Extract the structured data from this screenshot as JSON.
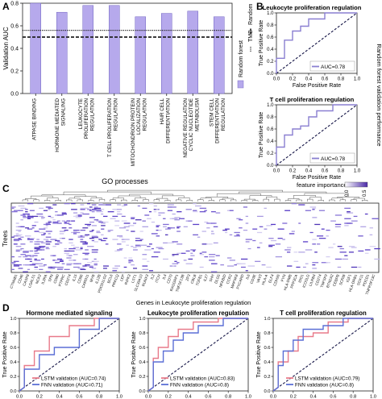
{
  "panel_labels": [
    "A",
    "B",
    "C",
    "D"
  ],
  "chart_data": [
    {
      "id": "A",
      "type": "bar",
      "ylabel": "Validation AUC",
      "ylim": [
        0,
        0.8
      ],
      "yticks": [
        "0.0",
        "0.2",
        "0.4",
        "0.6",
        "0.8"
      ],
      "categories": [
        "ATPASE BINDING",
        "HORMONE MEDIATED SIGNALING",
        "LEUKOCYTE PROLIFERATION REGULATION",
        "T CELL PROLIFERATION REGULATION",
        "MITOCHONDRION PROTEIN LOCALIZATION REGULATION",
        "HAIR CELL DIFFERENTIATION",
        "NEGATIVE REGULATION CYCLIC NUCLEOTIDE METABOLISM",
        "STEM CELL DIFFERENTIATION REGULATION"
      ],
      "values": [
        0.8,
        0.72,
        0.78,
        0.78,
        0.68,
        0.71,
        0.73,
        0.68
      ],
      "bar_color": "#b6a9ec",
      "reference_lines": [
        {
          "name": "Random",
          "value": 0.5,
          "style": "dashed"
        },
        {
          "name": "TMB",
          "value": 0.56,
          "style": "dotted"
        }
      ],
      "legend": [
        "Random forest",
        "TMB",
        "Random"
      ],
      "xlabel": "GO processes"
    },
    {
      "id": "B1",
      "type": "line",
      "title": "Leukocyte proliferation regulation",
      "xlabel": "False Positive Rate",
      "ylabel": "True Positive Rate",
      "ticks": [
        "0.0",
        "0.2",
        "0.4",
        "0.6",
        "0.8",
        "1.0"
      ],
      "xlim": [
        0,
        1
      ],
      "ylim": [
        0,
        1
      ],
      "series": [
        {
          "name": "AUC=0.78",
          "x": [
            0,
            0,
            0.1,
            0.1,
            0.2,
            0.2,
            0.3,
            0.3,
            0.4,
            0.4,
            0.6,
            0.6,
            1.0
          ],
          "y": [
            0,
            0.25,
            0.25,
            0.55,
            0.55,
            0.7,
            0.7,
            0.78,
            0.78,
            0.9,
            0.9,
            1.0,
            1.0
          ],
          "color": "#8a7fd1"
        }
      ],
      "side_label": "Random forest validation performance"
    },
    {
      "id": "B2",
      "type": "line",
      "title": "T cell proliferation regulation",
      "xlabel": "False Positive Rate",
      "ylabel": "True Positive Rate",
      "ticks": [
        "0.0",
        "0.2",
        "0.4",
        "0.6",
        "0.8",
        "1.0"
      ],
      "xlim": [
        0,
        1
      ],
      "ylim": [
        0,
        1
      ],
      "series": [
        {
          "name": "AUC=0.78",
          "x": [
            0,
            0,
            0.1,
            0.1,
            0.2,
            0.2,
            0.3,
            0.3,
            0.4,
            0.4,
            0.5,
            0.5,
            0.7,
            0.7,
            1.0
          ],
          "y": [
            0,
            0.3,
            0.3,
            0.5,
            0.5,
            0.6,
            0.6,
            0.65,
            0.65,
            0.8,
            0.8,
            0.9,
            0.9,
            1.0,
            1.0
          ],
          "color": "#8a7fd1"
        }
      ]
    },
    {
      "id": "C",
      "type": "heatmap",
      "ylabel": "Trees",
      "xlabel": "Genes in Leukocyte proliferation regulation",
      "colorbar_title": "feature importances",
      "colorbar_ticks": [
        "0.0",
        "0.5"
      ],
      "gene_labels": [
        "CTNNB1",
        "CD46",
        "CASP8",
        "LGALS1",
        "NCK2",
        "IL2RA",
        "SPN",
        "CD80",
        "PTPRC",
        "CD274",
        "IL15",
        "CD86",
        "CARD11",
        "MYB",
        "IL12B",
        "PDCD1LG2",
        "BCL6",
        "PRKCQ",
        "LEP",
        "RIPK3",
        "LST1",
        "SLC39A10",
        "RUNX3",
        "IL2",
        "ITCH",
        "IL4",
        "CD70",
        "RASGRP1",
        "TNFSF13B",
        "ZP3",
        "CBLB",
        "TGFB1",
        "IL27",
        "SHH",
        "DLG5",
        "NFKBID",
        "CCR2",
        "MAP3K8",
        "PYCARD",
        "IL6",
        "CD3E",
        "VAV3",
        "HLA-A",
        "ELF4",
        "CDH26",
        "FYN",
        "HLA-DMB",
        "PPP3CA",
        "IDO1",
        "ICOSLG",
        "LILRB4",
        "CD274",
        "TNFSF9",
        "BTN2A2",
        "CEBPB",
        "SCRIB",
        "IGF1",
        "HLA-DRB1",
        "SOX11",
        "PDCD1",
        "TNFRSF13C"
      ]
    },
    {
      "id": "D1",
      "type": "line",
      "title": "Hormone mediated signaling",
      "xlabel": "False Positive Rate",
      "ylabel": "True Positive Rate",
      "ticks": [
        "0.0",
        "0.2",
        "0.4",
        "0.6",
        "0.8",
        "1.0"
      ],
      "xlim": [
        0,
        1
      ],
      "ylim": [
        0,
        1
      ],
      "series": [
        {
          "name": "LSTM validation (AUC=0.74)",
          "x": [
            0,
            0.05,
            0.05,
            0.15,
            0.15,
            0.3,
            0.3,
            0.5,
            0.5,
            0.75,
            0.75,
            1.0
          ],
          "y": [
            0,
            0.05,
            0.35,
            0.35,
            0.55,
            0.55,
            0.75,
            0.75,
            0.9,
            0.9,
            1.0,
            1.0
          ],
          "color": "#e87a8a"
        },
        {
          "name": "FNN validation (AUC=0.71)",
          "x": [
            0,
            0.05,
            0.05,
            0.2,
            0.2,
            0.35,
            0.35,
            0.6,
            0.6,
            0.8,
            0.8,
            1.0
          ],
          "y": [
            0,
            0.05,
            0.3,
            0.3,
            0.5,
            0.5,
            0.6,
            0.6,
            0.85,
            0.85,
            1.0,
            1.0
          ],
          "color": "#5b6fd6"
        }
      ]
    },
    {
      "id": "D2",
      "type": "line",
      "title": "Leukocyte proliferation regulation",
      "xlabel": "False Positive Rate",
      "ylabel": "True Positive Rate",
      "ticks": [
        "0.0",
        "0.2",
        "0.4",
        "0.6",
        "0.8",
        "1.0"
      ],
      "xlim": [
        0,
        1
      ],
      "ylim": [
        0,
        1
      ],
      "series": [
        {
          "name": "LSTM validation (AUC=0.83)",
          "x": [
            0,
            0.05,
            0.05,
            0.1,
            0.1,
            0.2,
            0.2,
            0.3,
            0.3,
            0.45,
            0.45,
            0.7,
            0.7,
            1.0
          ],
          "y": [
            0,
            0.05,
            0.45,
            0.45,
            0.6,
            0.6,
            0.75,
            0.75,
            0.85,
            0.85,
            0.95,
            0.95,
            1.0,
            1.0
          ],
          "color": "#e87a8a"
        },
        {
          "name": "FNN validation (AUC=0.8)",
          "x": [
            0,
            0.05,
            0.05,
            0.15,
            0.15,
            0.25,
            0.25,
            0.35,
            0.35,
            0.5,
            0.5,
            0.75,
            0.75,
            1.0
          ],
          "y": [
            0,
            0.05,
            0.4,
            0.4,
            0.55,
            0.55,
            0.7,
            0.7,
            0.8,
            0.8,
            0.9,
            0.9,
            1.0,
            1.0
          ],
          "color": "#5b6fd6"
        }
      ]
    },
    {
      "id": "D3",
      "type": "line",
      "title": "T cell proliferation regulation",
      "xlabel": "False Positive Rate",
      "ylabel": "True Positive Rate",
      "ticks": [
        "0.0",
        "0.2",
        "0.4",
        "0.6",
        "0.8",
        "1.0"
      ],
      "xlim": [
        0,
        1
      ],
      "ylim": [
        0,
        1
      ],
      "series": [
        {
          "name": "LSTM validation (AUC=0.79)",
          "x": [
            0,
            0.05,
            0.05,
            0.15,
            0.15,
            0.25,
            0.25,
            0.4,
            0.4,
            0.55,
            0.55,
            0.75,
            0.75,
            1.0
          ],
          "y": [
            0,
            0.05,
            0.4,
            0.4,
            0.55,
            0.55,
            0.75,
            0.75,
            0.8,
            0.8,
            0.95,
            0.95,
            1.0,
            1.0
          ],
          "color": "#e87a8a"
        },
        {
          "name": "FNN validation (AUC=0.8)",
          "x": [
            0,
            0.05,
            0.05,
            0.1,
            0.1,
            0.2,
            0.2,
            0.3,
            0.3,
            0.5,
            0.5,
            0.7,
            0.7,
            1.0
          ],
          "y": [
            0,
            0.05,
            0.35,
            0.35,
            0.55,
            0.55,
            0.7,
            0.7,
            0.85,
            0.85,
            0.9,
            0.9,
            1.0,
            1.0
          ],
          "color": "#5b6fd6"
        }
      ]
    }
  ]
}
